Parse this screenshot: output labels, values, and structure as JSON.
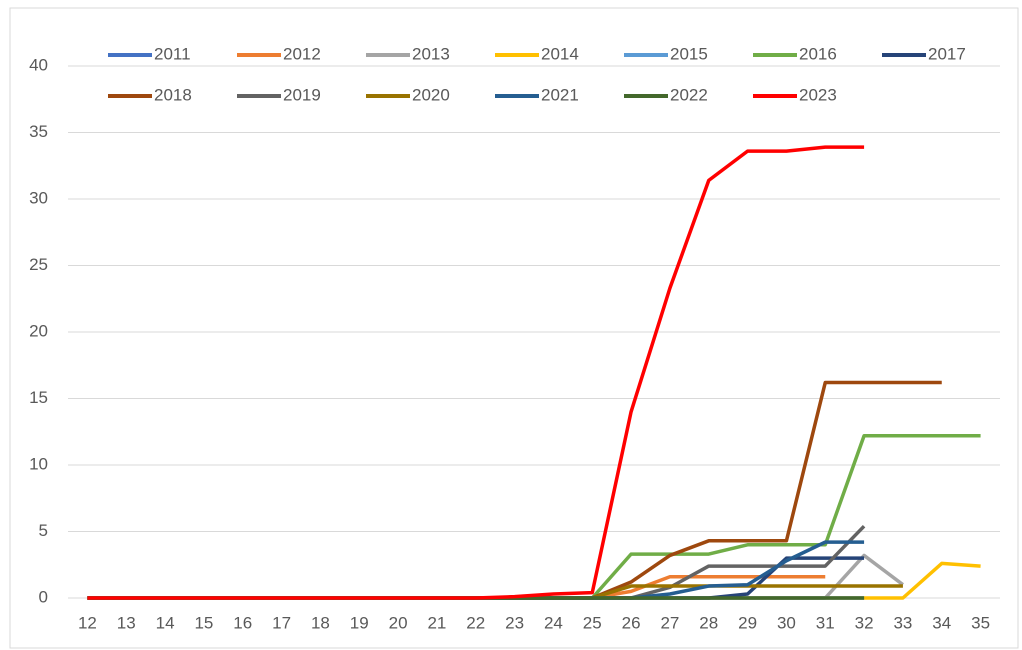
{
  "chart_data": {
    "type": "line",
    "categories": [
      "12",
      "13",
      "14",
      "15",
      "16",
      "17",
      "18",
      "19",
      "20",
      "21",
      "22",
      "23",
      "24",
      "25",
      "26",
      "27",
      "28",
      "29",
      "30",
      "31",
      "32",
      "33",
      "34",
      "35"
    ],
    "series": [
      {
        "name": "2011",
        "color": "#4472c4",
        "values": [
          0,
          0,
          0,
          0,
          0,
          0,
          0,
          0,
          0,
          0,
          0,
          0,
          0,
          0,
          0,
          0,
          0,
          0,
          0,
          0,
          null,
          null,
          null,
          null
        ]
      },
      {
        "name": "2012",
        "color": "#ed7d31",
        "values": [
          0,
          0,
          0,
          0,
          0,
          0,
          0,
          0,
          0,
          0,
          0,
          0,
          0,
          0,
          0.5,
          1.6,
          1.6,
          1.6,
          1.6,
          1.6,
          null,
          null,
          null,
          null
        ]
      },
      {
        "name": "2013",
        "color": "#a5a5a5",
        "values": [
          0,
          0,
          0,
          0,
          0,
          0,
          0,
          0,
          0,
          0,
          0,
          0,
          0,
          0,
          0,
          0,
          0,
          0,
          0,
          0,
          3.2,
          1,
          null,
          null
        ]
      },
      {
        "name": "2014",
        "color": "#ffc000",
        "values": [
          0,
          0,
          0,
          0,
          0,
          0,
          0,
          0,
          0,
          0,
          0,
          0,
          0,
          0,
          0,
          0,
          0,
          0,
          0,
          0,
          0,
          0,
          2.6,
          2.4
        ]
      },
      {
        "name": "2015",
        "color": "#5b9bd5",
        "values": [
          0,
          0,
          0,
          0,
          0,
          0,
          0,
          0,
          0,
          0,
          0,
          0,
          0,
          0,
          0,
          0,
          0,
          0,
          0,
          0,
          0,
          null,
          null,
          null
        ]
      },
      {
        "name": "2016",
        "color": "#70ad47",
        "values": [
          0,
          0,
          0,
          0,
          0,
          0,
          0,
          0,
          0,
          0,
          0,
          0,
          0,
          0,
          3.3,
          3.3,
          3.3,
          4,
          4,
          4,
          12.2,
          12.2,
          12.2,
          12.2
        ]
      },
      {
        "name": "2017",
        "color": "#264478",
        "values": [
          0,
          0,
          0,
          0,
          0,
          0,
          0,
          0,
          0,
          0,
          0,
          0,
          0,
          0,
          0,
          0,
          0,
          0.3,
          3,
          3,
          3,
          null,
          null,
          null
        ]
      },
      {
        "name": "2018",
        "color": "#9e480e",
        "values": [
          0,
          0,
          0,
          0,
          0,
          0,
          0,
          0,
          0,
          0,
          0,
          0,
          0,
          0,
          1.2,
          3.2,
          4.3,
          4.3,
          4.3,
          16.2,
          16.2,
          16.2,
          16.2,
          null
        ]
      },
      {
        "name": "2019",
        "color": "#636363",
        "values": [
          0,
          0,
          0,
          0,
          0,
          0,
          0,
          0,
          0,
          0,
          0,
          0,
          0,
          0,
          0,
          0.8,
          2.4,
          2.4,
          2.4,
          2.4,
          5.4,
          null,
          null,
          null
        ]
      },
      {
        "name": "2020",
        "color": "#997300",
        "values": [
          0,
          0,
          0,
          0,
          0,
          0,
          0,
          0,
          0,
          0,
          0,
          0,
          0,
          0,
          0.9,
          0.9,
          0.9,
          0.9,
          0.9,
          0.9,
          0.9,
          0.9,
          null,
          null
        ]
      },
      {
        "name": "2021",
        "color": "#255e91",
        "values": [
          0,
          0,
          0,
          0,
          0,
          0,
          0,
          0,
          0,
          0,
          0,
          0,
          0,
          0,
          0,
          0.3,
          0.9,
          1,
          2.8,
          4.2,
          4.2,
          null,
          null,
          null
        ]
      },
      {
        "name": "2022",
        "color": "#43682b",
        "values": [
          0,
          0,
          0,
          0,
          0,
          0,
          0,
          0,
          0,
          0,
          0,
          0,
          0,
          0,
          0,
          0,
          0,
          0,
          0,
          0,
          0,
          null,
          null,
          null
        ]
      },
      {
        "name": "2023",
        "color": "#ff0000",
        "values": [
          0,
          0,
          0,
          0,
          0,
          0,
          0,
          0,
          0,
          0,
          0,
          0.1,
          0.3,
          0.4,
          14,
          23.3,
          31.4,
          33.6,
          33.6,
          33.9,
          33.9,
          null,
          null,
          null
        ]
      }
    ],
    "ylim": [
      0,
      40
    ],
    "yticks": [
      0,
      5,
      10,
      15,
      20,
      25,
      30,
      35,
      40
    ],
    "grid": true,
    "legend": "top"
  }
}
